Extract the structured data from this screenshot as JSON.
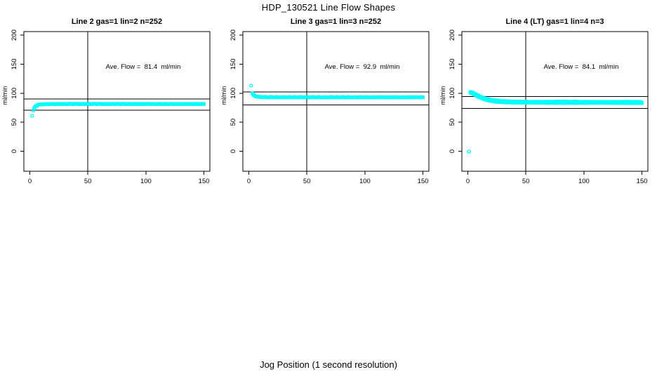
{
  "page": {
    "main_title": "HDP_130521  Line Flow Shapes",
    "x_axis_caption": "Jog Position (1 second resolution)"
  },
  "chart_data": {
    "type": "scatter",
    "layout": "1 row x 3 panels",
    "point_color": "#00FFFF",
    "axis_color": "#000000",
    "x_range": [
      0,
      150
    ],
    "y_range": [
      0,
      200
    ],
    "x_ticks": [
      "0",
      "50",
      "100",
      "150"
    ],
    "y_ticks": [
      "0",
      "50",
      "100",
      "150",
      "200"
    ],
    "x_tick_values": [
      0,
      50,
      100,
      150
    ],
    "y_tick_values": [
      0,
      50,
      100,
      150,
      200
    ],
    "grid": false,
    "xlabel": "Jog Position (1 second resolution)",
    "ylabel": "ml/min",
    "plots": [
      {
        "title": "Line 2 gas=1 lin=2 n=252",
        "ylabel": "ml/min",
        "annotation": "Ave. Flow =  81.4  ml/min",
        "ave_flow_ml_min": 81.4,
        "n_points": 252,
        "vline_x": 50,
        "hlines": [
          90,
          70.5
        ],
        "outliers": [
          [
            2,
            61
          ]
        ],
        "outlier_marker": "square",
        "band_marker": "square",
        "band_x_step": 0.6,
        "band_jitter": 0.5,
        "band_centerline": [
          [
            3,
            70
          ],
          [
            4,
            75
          ],
          [
            5,
            77.5
          ],
          [
            6,
            79
          ],
          [
            7,
            79.8
          ],
          [
            8,
            80.3
          ],
          [
            10,
            80.8
          ],
          [
            15,
            81.2
          ],
          [
            25,
            81.4
          ],
          [
            50,
            81.4
          ],
          [
            100,
            81.4
          ],
          [
            150,
            81.4
          ]
        ]
      },
      {
        "title": "Line 3 gas=1 lin=3 n=252",
        "ylabel": "ml/min",
        "annotation": "Ave. Flow =  92.9  ml/min",
        "ave_flow_ml_min": 92.9,
        "n_points": 252,
        "vline_x": 50,
        "hlines": [
          102,
          80
        ],
        "outliers": [
          [
            2,
            113
          ]
        ],
        "outlier_marker": "square",
        "band_marker": "square",
        "band_x_step": 0.6,
        "band_jitter": 0.55,
        "band_centerline": [
          [
            3,
            99.5
          ],
          [
            4,
            97
          ],
          [
            5,
            95.5
          ],
          [
            6,
            94.6
          ],
          [
            7,
            94.1
          ],
          [
            8,
            93.8
          ],
          [
            10,
            93.4
          ],
          [
            15,
            93.1
          ],
          [
            25,
            93
          ],
          [
            50,
            93
          ],
          [
            100,
            93
          ],
          [
            150,
            93
          ]
        ]
      },
      {
        "title": "Line 4 (LT) gas=1 lin=4 n=3",
        "ylabel": "ml/min",
        "annotation": "Ave. Flow =  84.1  ml/min",
        "ave_flow_ml_min": 84.1,
        "n_points": 3,
        "vline_x": 50,
        "hlines": [
          94.5,
          74
        ],
        "outliers": [
          [
            1,
            -0.5
          ]
        ],
        "outlier_marker": "circle",
        "band_marker": "square",
        "band_x_step": 0.25,
        "band_jitter": 1.2,
        "band_centerline": [
          [
            2,
            101
          ],
          [
            3,
            101.2
          ],
          [
            4,
            100.4
          ],
          [
            5,
            99.3
          ],
          [
            6,
            98.1
          ],
          [
            8,
            95.9
          ],
          [
            10,
            93.9
          ],
          [
            12,
            92.1
          ],
          [
            14,
            90.6
          ],
          [
            16,
            89.4
          ],
          [
            18,
            88.4
          ],
          [
            20,
            87.5
          ],
          [
            24,
            86.4
          ],
          [
            28,
            85.7
          ],
          [
            32,
            85.2
          ],
          [
            36,
            84.9
          ],
          [
            40,
            84.7
          ],
          [
            50,
            84.4
          ],
          [
            60,
            84.3
          ],
          [
            80,
            84.3
          ],
          [
            100,
            84.2
          ],
          [
            125,
            84.1
          ],
          [
            150,
            84
          ]
        ]
      }
    ]
  }
}
